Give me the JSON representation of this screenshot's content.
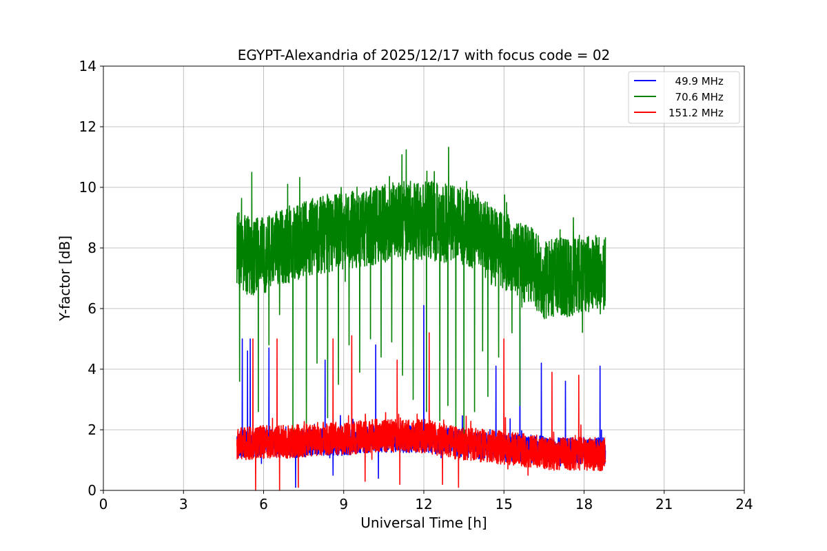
{
  "chart_data": {
    "type": "line",
    "title": "EGYPT-Alexandria of 2025/12/17 with focus code = 02",
    "xlabel": "Universal Time [h]",
    "ylabel": "Y-factor [dB]",
    "xlim": [
      0,
      24
    ],
    "ylim": [
      0,
      14
    ],
    "xticks": [
      0,
      3,
      6,
      9,
      12,
      15,
      18,
      21,
      24
    ],
    "yticks": [
      0,
      2,
      4,
      6,
      8,
      10,
      12,
      14
    ],
    "grid": true,
    "legend_position": "top-right",
    "x_range_of_data": [
      5.0,
      18.8
    ],
    "series": [
      {
        "name": "  49.9 MHz",
        "color": "#0000ff",
        "baseline": [
          [
            5.0,
            1.5
          ],
          [
            6.0,
            1.6
          ],
          [
            7.0,
            1.5
          ],
          [
            8.0,
            1.6
          ],
          [
            9.0,
            1.6
          ],
          [
            10.0,
            1.7
          ],
          [
            11.0,
            1.7
          ],
          [
            12.0,
            1.7
          ],
          [
            13.0,
            1.6
          ],
          [
            14.0,
            1.5
          ],
          [
            15.0,
            1.4
          ],
          [
            16.0,
            1.4
          ],
          [
            17.0,
            1.3
          ],
          [
            18.0,
            1.3
          ],
          [
            18.8,
            1.3
          ]
        ],
        "noise": 0.45,
        "spikes": [
          [
            5.2,
            5.0
          ],
          [
            5.4,
            4.6
          ],
          [
            5.5,
            5.0
          ],
          [
            6.2,
            4.7
          ],
          [
            8.3,
            4.3
          ],
          [
            10.2,
            4.8
          ],
          [
            12.0,
            6.1
          ],
          [
            14.7,
            4.1
          ],
          [
            15.6,
            5.7
          ],
          [
            16.4,
            4.2
          ],
          [
            17.3,
            3.6
          ],
          [
            18.6,
            4.1
          ]
        ],
        "dips": [
          [
            7.2,
            0.1
          ],
          [
            8.6,
            0.5
          ],
          [
            10.3,
            0.4
          ],
          [
            18.7,
            0.9
          ]
        ]
      },
      {
        "name": "  70.6 MHz",
        "color": "#008000",
        "baseline": [
          [
            5.0,
            7.9
          ],
          [
            5.5,
            7.7
          ],
          [
            6.0,
            7.8
          ],
          [
            6.5,
            8.0
          ],
          [
            7.0,
            8.1
          ],
          [
            8.0,
            8.4
          ],
          [
            9.0,
            8.6
          ],
          [
            10.0,
            8.7
          ],
          [
            11.0,
            8.9
          ],
          [
            12.0,
            8.9
          ],
          [
            13.0,
            8.8
          ],
          [
            14.0,
            8.6
          ],
          [
            14.5,
            8.1
          ],
          [
            15.0,
            7.9
          ],
          [
            16.0,
            7.4
          ],
          [
            16.5,
            6.9
          ],
          [
            17.0,
            7.1
          ],
          [
            17.5,
            7.0
          ],
          [
            18.0,
            7.2
          ],
          [
            18.8,
            7.1
          ]
        ],
        "noise": 1.3,
        "spikes": [
          [
            6.9,
            10.1
          ],
          [
            8.9,
            10.0
          ],
          [
            11.5,
            10.2
          ],
          [
            12.3,
            10.2
          ],
          [
            13.6,
            10.2
          ],
          [
            15.1,
            9.5
          ],
          [
            17.6,
            9.0
          ]
        ],
        "dips": [
          [
            5.1,
            3.6
          ],
          [
            5.8,
            2.6
          ],
          [
            6.2,
            4.8
          ],
          [
            6.6,
            5.8
          ],
          [
            7.1,
            1.8
          ],
          [
            7.6,
            1.6
          ],
          [
            8.0,
            4.2
          ],
          [
            8.4,
            2.4
          ],
          [
            8.8,
            3.5
          ],
          [
            9.2,
            4.8
          ],
          [
            9.6,
            3.9
          ],
          [
            10.0,
            5.0
          ],
          [
            10.4,
            4.4
          ],
          [
            10.8,
            4.9
          ],
          [
            11.2,
            3.8
          ],
          [
            11.6,
            3.0
          ],
          [
            12.1,
            2.6
          ],
          [
            12.6,
            2.3
          ],
          [
            12.9,
            2.8
          ],
          [
            13.2,
            1.6
          ],
          [
            13.5,
            1.8
          ],
          [
            13.9,
            2.6
          ],
          [
            14.2,
            4.6
          ],
          [
            14.4,
            3.1
          ],
          [
            14.8,
            4.4
          ],
          [
            15.3,
            5.2
          ],
          [
            15.6,
            2.8
          ]
        ]
      },
      {
        "name": "151.2 MHz",
        "color": "#ff0000",
        "baseline": [
          [
            5.0,
            1.5
          ],
          [
            6.0,
            1.6
          ],
          [
            7.0,
            1.6
          ],
          [
            8.0,
            1.7
          ],
          [
            9.0,
            1.7
          ],
          [
            10.0,
            1.8
          ],
          [
            11.0,
            1.8
          ],
          [
            12.0,
            1.8
          ],
          [
            13.0,
            1.6
          ],
          [
            14.0,
            1.5
          ],
          [
            15.0,
            1.4
          ],
          [
            16.0,
            1.3
          ],
          [
            17.0,
            1.2
          ],
          [
            18.0,
            1.2
          ],
          [
            18.8,
            1.2
          ]
        ],
        "noise": 0.55,
        "spikes": [
          [
            5.6,
            5.0
          ],
          [
            6.5,
            5.0
          ],
          [
            8.6,
            5.0
          ],
          [
            9.3,
            5.1
          ],
          [
            11.0,
            4.3
          ],
          [
            12.2,
            5.2
          ],
          [
            15.0,
            5.0
          ],
          [
            16.8,
            3.9
          ],
          [
            17.8,
            3.8
          ]
        ],
        "dips": [
          [
            5.7,
            0.0
          ],
          [
            6.6,
            0.0
          ],
          [
            7.3,
            0.1
          ],
          [
            9.8,
            0.3
          ],
          [
            11.1,
            0.2
          ],
          [
            12.7,
            0.2
          ],
          [
            13.3,
            0.1
          ],
          [
            15.9,
            0.5
          ]
        ]
      }
    ]
  }
}
